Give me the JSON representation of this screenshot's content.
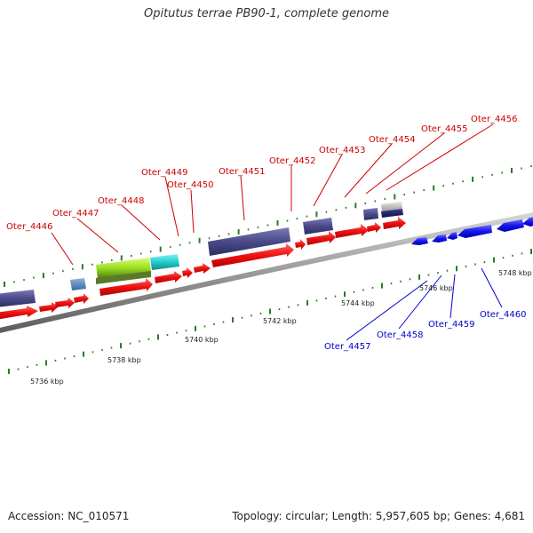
{
  "title": "Opitutus terrae PB90-1, complete genome",
  "footer": {
    "accession": "Accession: NC_010571",
    "summary": "Topology: circular; Length: 5,957,605 bp; Genes: 4,681"
  },
  "colors": {
    "forward_label": "#cc0000",
    "reverse_label": "#0000cc",
    "forward_gene": "#ee1111",
    "reverse_gene": "#1111ee",
    "feature_bar": "#4a4a8a",
    "tick": "#2a7a2a",
    "backbone": "#8a8a8a"
  },
  "scale_ticks": [
    {
      "label": "5736 kbp"
    },
    {
      "label": "5738 kbp"
    },
    {
      "label": "5740 kbp"
    },
    {
      "label": "5742 kbp"
    },
    {
      "label": "5744 kbp"
    },
    {
      "label": "5746 kbp"
    },
    {
      "label": "5748 kbp"
    }
  ],
  "forward_labels": [
    {
      "text": "Oter_4446"
    },
    {
      "text": "Oter_4447"
    },
    {
      "text": "Oter_4448"
    },
    {
      "text": "Oter_4449"
    },
    {
      "text": "Oter_4450"
    },
    {
      "text": "Oter_4451"
    },
    {
      "text": "Oter_4452"
    },
    {
      "text": "Oter_4453"
    },
    {
      "text": "Oter_4454"
    },
    {
      "text": "Oter_4455"
    },
    {
      "text": "Oter_4456"
    }
  ],
  "reverse_labels": [
    {
      "text": "Oter_4457"
    },
    {
      "text": "Oter_4458"
    },
    {
      "text": "Oter_4459"
    },
    {
      "text": "Oter_4460"
    }
  ]
}
